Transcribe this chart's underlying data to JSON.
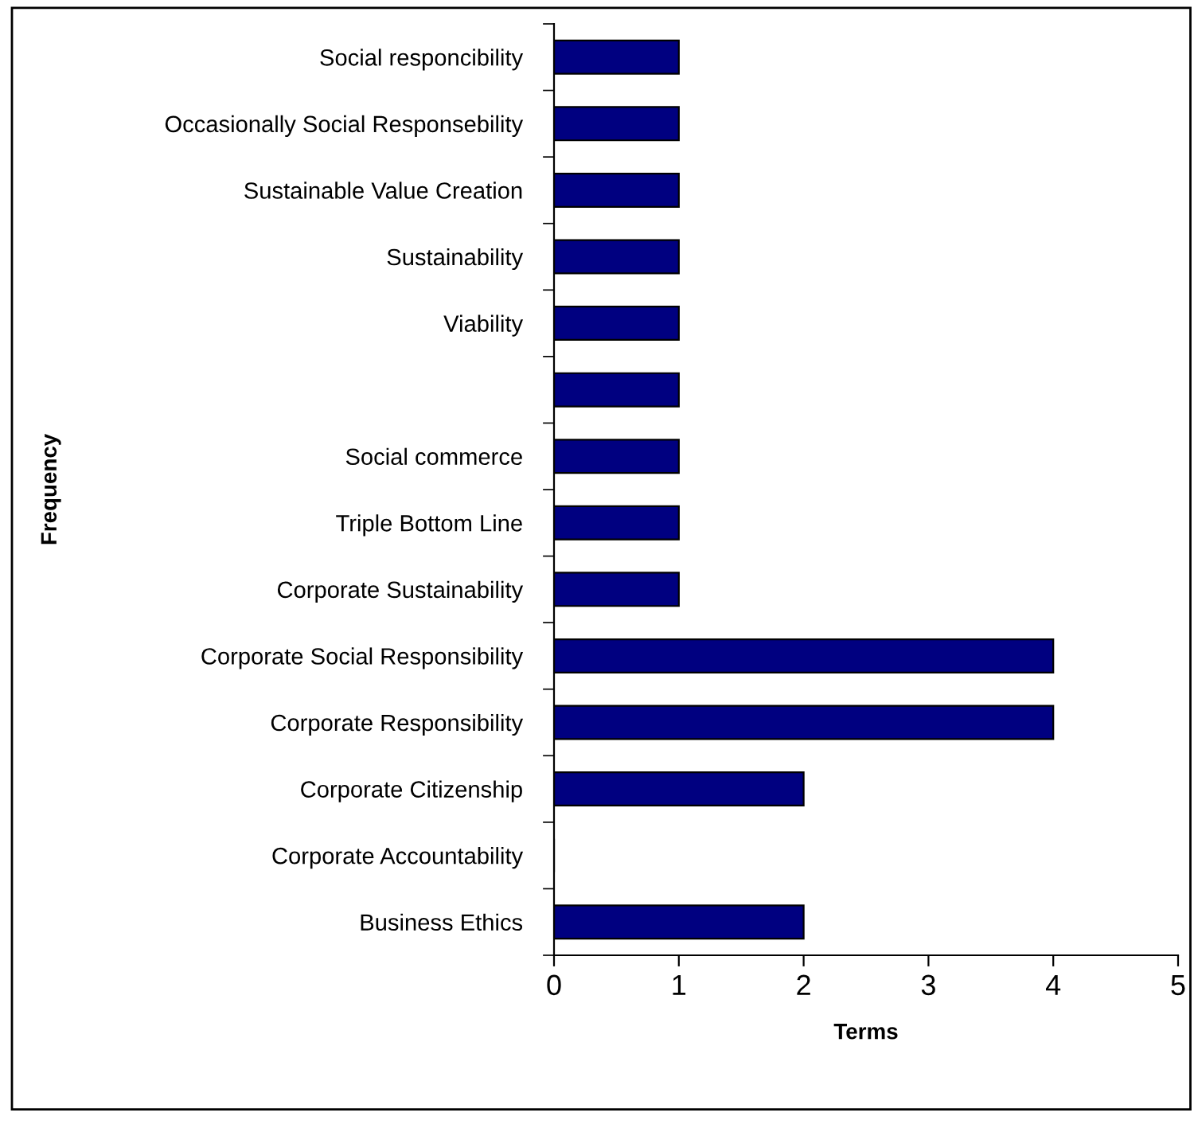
{
  "chart_data": {
    "type": "bar",
    "orientation": "horizontal",
    "xlabel": "Terms",
    "ylabel": "Frequency",
    "categories": [
      "Social responcibility",
      "Occasionally Social Responsebility",
      "Sustainable Value Creation",
      "Sustainability",
      "Viability",
      null,
      "Social commerce",
      "Triple Bottom Line",
      "Corporate Sustainability",
      "Corporate Social Responsibility",
      "Corporate Responsibility",
      "Corporate Citizenship",
      "Corporate Accountability",
      "Business Ethics"
    ],
    "values": [
      1,
      1,
      1,
      1,
      1,
      1,
      1,
      1,
      1,
      4,
      4,
      2,
      0,
      2
    ],
    "color": "#000080",
    "xlim": [
      0,
      5
    ],
    "xticks": [
      0,
      1,
      2,
      3,
      4,
      5
    ],
    "grid": false,
    "legend": false
  }
}
